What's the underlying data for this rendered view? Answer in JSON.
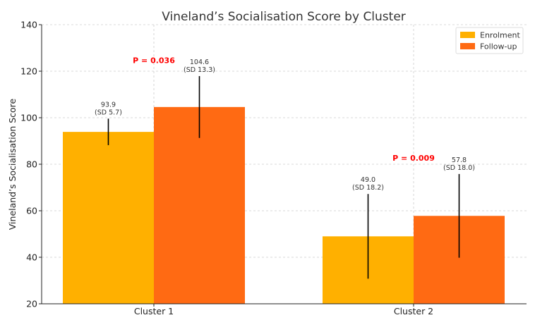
{
  "chart_data": {
    "type": "bar",
    "title": "Vineland’s Socialisation Score by Cluster",
    "xlabel": "",
    "ylabel": "Vineland’s Socialisation Score",
    "ylim": [
      20,
      140
    ],
    "yticks": [
      20,
      40,
      60,
      80,
      100,
      120,
      140
    ],
    "grid": true,
    "legend_position": "top-right",
    "categories": [
      "Cluster 1",
      "Cluster 2"
    ],
    "series": [
      {
        "name": "Enrolment",
        "color": "#FFB000",
        "values": [
          93.9,
          49.0
        ],
        "sd": [
          5.7,
          18.2
        ],
        "labels": [
          "93.9",
          "49.0"
        ],
        "sd_labels": [
          "(SD 5.7)",
          "(SD 18.2)"
        ]
      },
      {
        "name": "Follow-up",
        "color": "#FF6A13",
        "values": [
          104.6,
          57.8
        ],
        "sd": [
          13.3,
          18.0
        ],
        "labels": [
          "104.6",
          "57.8"
        ],
        "sd_labels": [
          "(SD 13.3)",
          "(SD 18.0)"
        ]
      }
    ],
    "annotations": [
      {
        "text": "P = 0.036",
        "category": "Cluster 1",
        "y": 123.5,
        "color": "#FF0000"
      },
      {
        "text": "P = 0.009",
        "category": "Cluster 2",
        "y": 81.5,
        "color": "#FF0000"
      }
    ]
  }
}
